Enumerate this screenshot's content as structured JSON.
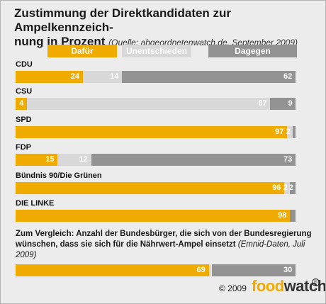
{
  "title": "Zustimmung der Direktkandidaten zur Ampelkennzeichnung in Prozent",
  "title_line1": "Zustimmung der Direktkandidaten zur Ampelkennzeich-",
  "title_line2": "nung in Prozent",
  "source": "(Quelle: abgeordnetenwatch.de, September 2009)",
  "legend": [
    {
      "label": "Dafür",
      "color": "#f0ab00"
    },
    {
      "label": "Unentschieden",
      "color": "#d8d8d8"
    },
    {
      "label": "Dagegen",
      "color": "#939393"
    }
  ],
  "comparison_text": "Zum Vergleich: Anzahl der Bundesbürger, die sich von der Bundesregierung wünschen, dass sie sich für die Nährwert-Ampel einsetzt",
  "comparison_source": "(Emnid-Daten, Juli 2009)",
  "copyright": "© 2009",
  "brand": {
    "food": "food",
    "watch": "watch",
    "reg": "®"
  },
  "chart_data": {
    "type": "bar",
    "orientation": "horizontal",
    "stacked": true,
    "unit": "%",
    "xlim": [
      0,
      100
    ],
    "series_names": [
      "Dafür",
      "Unentschieden",
      "Dagegen"
    ],
    "colors": [
      "#f0ab00",
      "#d8d8d8",
      "#939393"
    ],
    "categories": [
      "CDU",
      "CSU",
      "SPD",
      "FDP",
      "Bündnis 90/Die Grünen",
      "DIE LINKE",
      "Bundesbürger (Emnid)"
    ],
    "series": [
      {
        "name": "Dafür",
        "values": [
          24,
          4,
          97,
          15,
          96,
          98,
          69
        ]
      },
      {
        "name": "Unentschieden",
        "values": [
          14,
          87,
          2,
          12,
          2,
          0,
          1
        ]
      },
      {
        "name": "Dagegen",
        "values": [
          62,
          9,
          1,
          73,
          2,
          2,
          30
        ]
      }
    ],
    "data_labels": [
      [
        "24",
        "14",
        "62"
      ],
      [
        "4",
        "87",
        "9"
      ],
      [
        "97",
        "2",
        ""
      ],
      [
        "15",
        "12",
        "73"
      ],
      [
        "96",
        "2",
        "2"
      ],
      [
        "98",
        "",
        ""
      ],
      [
        "69",
        "",
        "30"
      ]
    ],
    "row_labels": [
      "CDU",
      "CSU",
      "SPD",
      "FDP",
      "Bündnis 90/Die Grünen",
      "DIE LINKE",
      ""
    ]
  }
}
